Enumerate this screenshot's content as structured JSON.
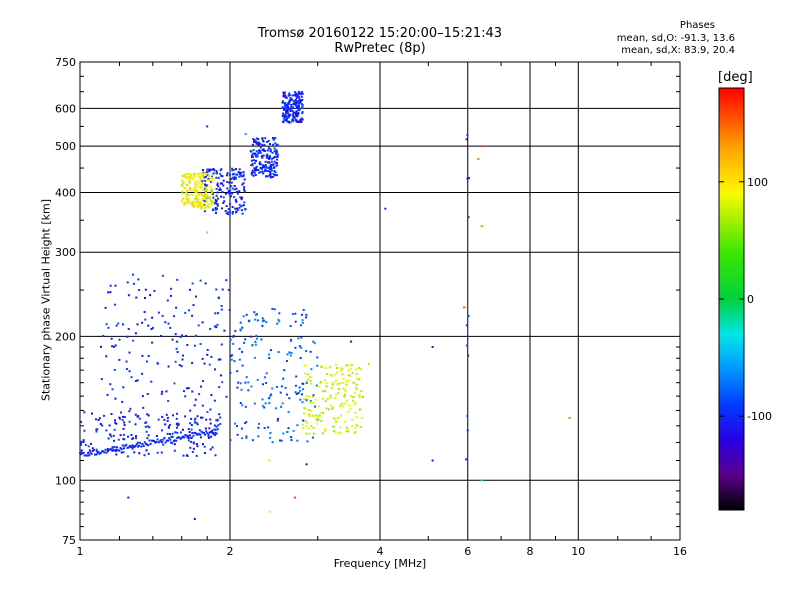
{
  "chart_data": {
    "type": "scatter",
    "title": "Tromsø 20160122 15:20:00–15:21:43",
    "subtitle": "RwPretec (8p)",
    "xlabel": "Frequency [MHz]",
    "ylabel": "Stationary phase Virtual Height [km]",
    "x_scale": "log",
    "y_scale": "log",
    "xlim": [
      1,
      16
    ],
    "ylim": [
      75,
      750
    ],
    "x_ticks": [
      "1",
      "2",
      "4",
      "6",
      "8",
      "10",
      "16"
    ],
    "x_tick_values": [
      1,
      2,
      4,
      6,
      8,
      10,
      16
    ],
    "y_ticks": [
      "75",
      "100",
      "200",
      "300",
      "400",
      "500",
      "600",
      "750"
    ],
    "y_tick_values": [
      75,
      100,
      200,
      300,
      400,
      500,
      600,
      750
    ],
    "grid": true,
    "colorbar": {
      "label": "[deg]",
      "ticks": [
        "100",
        "0",
        "-100"
      ],
      "tick_values": [
        100,
        0,
        -100
      ],
      "range": [
        -180,
        180
      ]
    },
    "phases_box": {
      "title": "Phases",
      "o_line": "mean, sd,O: -91.3, 13.6",
      "x_line": "mean, sd,X: 83.9, 20.4"
    },
    "clusters": [
      {
        "freq_range": [
          1.0,
          1.9
        ],
        "height_range": [
          112,
          140
        ],
        "phase": -100
      },
      {
        "freq_range": [
          1.1,
          2.0
        ],
        "height_range": [
          130,
          270
        ],
        "phase": -100
      },
      {
        "freq_range": [
          2.0,
          3.0
        ],
        "height_range": [
          120,
          230
        ],
        "phase": -80
      },
      {
        "freq_range": [
          2.8,
          3.7
        ],
        "height_range": [
          125,
          175
        ],
        "phase": 80
      },
      {
        "freq_range": [
          1.75,
          2.15
        ],
        "height_range": [
          360,
          450
        ],
        "phase": -100
      },
      {
        "freq_range": [
          1.6,
          1.85
        ],
        "height_range": [
          370,
          440
        ],
        "phase": 90
      },
      {
        "freq_range": [
          2.2,
          2.5
        ],
        "height_range": [
          430,
          520
        ],
        "phase": -100
      },
      {
        "freq_range": [
          2.55,
          2.8
        ],
        "height_range": [
          560,
          650
        ],
        "phase": -100
      },
      {
        "freq_range": [
          5.95,
          6.05
        ],
        "height_range": [
          110,
          580
        ],
        "phase": -100
      }
    ],
    "points": [
      {
        "x": 6.4,
        "y": 500,
        "phase": 160
      },
      {
        "x": 6.3,
        "y": 470,
        "phase": 140
      },
      {
        "x": 6.4,
        "y": 340,
        "phase": 40
      },
      {
        "x": 5.9,
        "y": 230,
        "phase": 150
      },
      {
        "x": 9.6,
        "y": 135,
        "phase": 140
      },
      {
        "x": 4.1,
        "y": 370,
        "phase": -100
      },
      {
        "x": 5.1,
        "y": 190,
        "phase": -110
      },
      {
        "x": 5.1,
        "y": 110,
        "phase": -110
      },
      {
        "x": 6.4,
        "y": 100,
        "phase": -30
      },
      {
        "x": 1.25,
        "y": 92,
        "phase": -110
      },
      {
        "x": 1.7,
        "y": 83,
        "phase": -110
      },
      {
        "x": 2.4,
        "y": 86,
        "phase": 100
      },
      {
        "x": 2.7,
        "y": 92,
        "phase": 160
      },
      {
        "x": 2.4,
        "y": 110,
        "phase": 100
      },
      {
        "x": 2.85,
        "y": 108,
        "phase": -140
      },
      {
        "x": 1.8,
        "y": 330,
        "phase": 120
      },
      {
        "x": 1.8,
        "y": 550,
        "phase": -100
      },
      {
        "x": 2.15,
        "y": 530,
        "phase": -60
      },
      {
        "x": 3.5,
        "y": 195,
        "phase": -150
      },
      {
        "x": 3.8,
        "y": 175,
        "phase": 110
      }
    ]
  }
}
